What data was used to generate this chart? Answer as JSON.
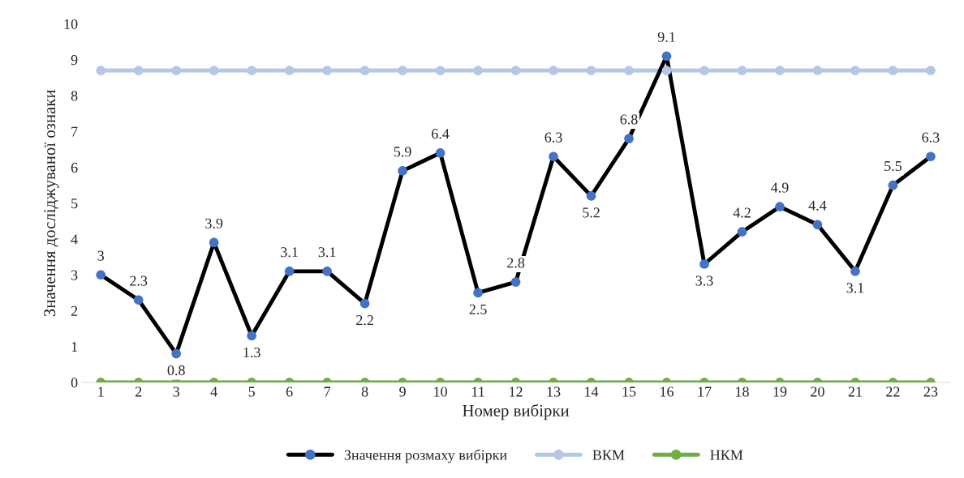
{
  "chart_data": {
    "type": "line",
    "xlabel": "Номер вибірки",
    "ylabel": "Значення досліджуваної ознаки",
    "categories": [
      "1",
      "2",
      "3",
      "4",
      "5",
      "6",
      "7",
      "8",
      "9",
      "10",
      "11",
      "12",
      "13",
      "14",
      "15",
      "16",
      "17",
      "18",
      "19",
      "20",
      "21",
      "22",
      "23"
    ],
    "series": [
      {
        "name": "Значення розмаху вибірки",
        "color": "#000000",
        "colors": [
          "#4472c4",
          "#4472c4",
          "#4472c4",
          "#4472c4",
          "#4472c4",
          "#4472c4",
          "#4472c4",
          "#4472c4",
          "#4472c4",
          "#4472c4",
          "#4472c4",
          "#4472c4",
          "#4472c4",
          "#4472c4",
          "#4472c4",
          "#4472c4",
          "#4472c4",
          "#4472c4",
          "#4472c4",
          "#4472c4",
          "#4472c4",
          "#4472c4",
          "#4472c4"
        ],
        "values": [
          3,
          2.3,
          0.8,
          3.9,
          1.3,
          3.1,
          3.1,
          2.2,
          5.9,
          6.4,
          2.5,
          2.8,
          6.3,
          5.2,
          6.8,
          9.1,
          3.3,
          4.2,
          4.9,
          4.4,
          3.1,
          5.5,
          6.3
        ],
        "value_labels": [
          "3",
          "2.3",
          "0.8",
          "3.9",
          "1.3",
          "3.1",
          "3.1",
          "2.2",
          "5.9",
          "6.4",
          "2.5",
          "2.8",
          "6.3",
          "5.2",
          "6.8",
          "9.1",
          "3.3",
          "4.2",
          "4.9",
          "4.4",
          "3.1",
          "5.5",
          "6.3"
        ]
      },
      {
        "name": "ВКМ",
        "color": "#b4c7e7",
        "values": [
          8.7,
          8.7,
          8.7,
          8.7,
          8.7,
          8.7,
          8.7,
          8.7,
          8.7,
          8.7,
          8.7,
          8.7,
          8.7,
          8.7,
          8.7,
          8.7,
          8.7,
          8.7,
          8.7,
          8.7,
          8.7,
          8.7,
          8.7
        ]
      },
      {
        "name": "НКМ",
        "color": "#70ad47",
        "values": [
          0,
          0,
          0,
          0,
          0,
          0,
          0,
          0,
          0,
          0,
          0,
          0,
          0,
          0,
          0,
          0,
          0,
          0,
          0,
          0,
          0,
          0,
          0
        ]
      }
    ],
    "ylim": [
      0,
      10
    ],
    "yticks": [
      0,
      1,
      2,
      3,
      4,
      5,
      6,
      7,
      8,
      9,
      10
    ],
    "grid": false,
    "legend": "bottom",
    "marker": "circle",
    "line_style": "solid"
  }
}
